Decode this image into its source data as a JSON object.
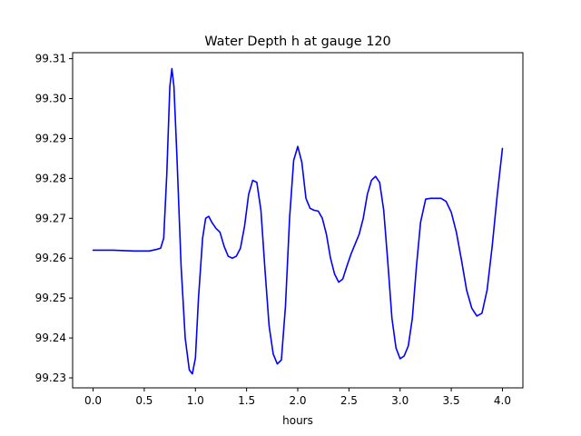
{
  "chart_data": {
    "type": "line",
    "title": "Water Depth h at gauge 120",
    "xlabel": "hours",
    "ylabel": "",
    "xlim": [
      -0.2,
      4.2
    ],
    "ylim": [
      99.2275,
      99.3115
    ],
    "xticks": [
      0.0,
      0.5,
      1.0,
      1.5,
      2.0,
      2.5,
      3.0,
      3.5,
      4.0
    ],
    "xtick_labels": [
      "0.0",
      "0.5",
      "1.0",
      "1.5",
      "2.0",
      "2.5",
      "3.0",
      "3.5",
      "4.0"
    ],
    "yticks": [
      99.23,
      99.24,
      99.25,
      99.26,
      99.27,
      99.28,
      99.29,
      99.3,
      99.31
    ],
    "ytick_labels": [
      "99.23",
      "99.24",
      "99.25",
      "99.26",
      "99.27",
      "99.28",
      "99.29",
      "99.30",
      "99.31"
    ],
    "grid": false,
    "color": "#0000ff",
    "x": [
      0.0,
      0.2,
      0.4,
      0.55,
      0.62,
      0.66,
      0.69,
      0.72,
      0.75,
      0.77,
      0.79,
      0.82,
      0.86,
      0.9,
      0.94,
      0.97,
      1.0,
      1.03,
      1.07,
      1.1,
      1.13,
      1.16,
      1.2,
      1.24,
      1.28,
      1.32,
      1.36,
      1.4,
      1.44,
      1.48,
      1.52,
      1.56,
      1.6,
      1.64,
      1.68,
      1.72,
      1.76,
      1.8,
      1.84,
      1.88,
      1.92,
      1.96,
      2.0,
      2.04,
      2.08,
      2.12,
      2.16,
      2.2,
      2.24,
      2.28,
      2.32,
      2.36,
      2.4,
      2.44,
      2.48,
      2.52,
      2.56,
      2.6,
      2.64,
      2.68,
      2.72,
      2.76,
      2.8,
      2.84,
      2.88,
      2.92,
      2.96,
      3.0,
      3.04,
      3.08,
      3.12,
      3.16,
      3.2,
      3.25,
      3.3,
      3.35,
      3.4,
      3.45,
      3.5,
      3.55,
      3.6,
      3.65,
      3.7,
      3.75,
      3.8,
      3.85,
      3.9,
      3.95,
      4.0
    ],
    "values": [
      99.262,
      99.262,
      99.2618,
      99.2618,
      99.2622,
      99.2625,
      99.265,
      99.281,
      99.303,
      99.3075,
      99.303,
      99.285,
      99.258,
      99.24,
      99.232,
      99.231,
      99.235,
      99.25,
      99.265,
      99.27,
      99.2705,
      99.269,
      99.2675,
      99.2665,
      99.263,
      99.2605,
      99.26,
      99.2605,
      99.2625,
      99.268,
      99.276,
      99.2795,
      99.279,
      99.272,
      99.257,
      99.243,
      99.236,
      99.2335,
      99.2345,
      99.248,
      99.27,
      99.2845,
      99.288,
      99.284,
      99.275,
      99.2725,
      99.272,
      99.2718,
      99.27,
      99.266,
      99.26,
      99.256,
      99.254,
      99.2548,
      99.258,
      99.261,
      99.2635,
      99.266,
      99.27,
      99.276,
      99.2795,
      99.2805,
      99.279,
      99.272,
      99.259,
      99.245,
      99.2375,
      99.2348,
      99.2355,
      99.238,
      99.245,
      99.258,
      99.269,
      99.2748,
      99.275,
      99.275,
      99.275,
      99.2742,
      99.2715,
      99.2665,
      99.2595,
      99.252,
      99.2475,
      99.2455,
      99.2462,
      99.252,
      99.263,
      99.276,
      99.2875
    ]
  }
}
